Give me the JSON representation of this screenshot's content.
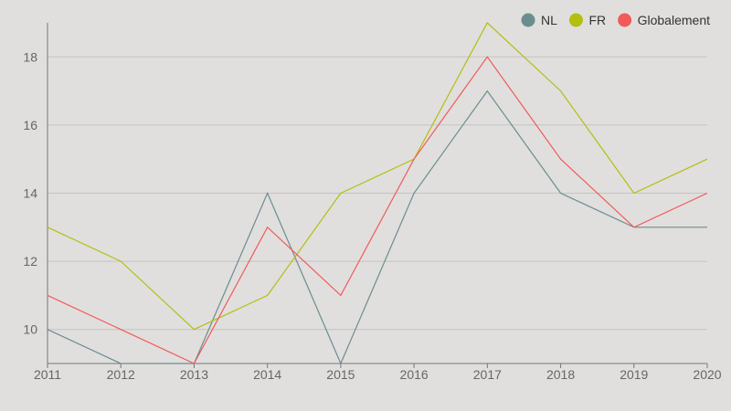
{
  "chart_data": {
    "type": "line",
    "title": "",
    "xlabel": "",
    "ylabel": "",
    "x": [
      "2011",
      "2012",
      "2013",
      "2014",
      "2015",
      "2016",
      "2017",
      "2018",
      "2019",
      "2020"
    ],
    "ylim": [
      9,
      19
    ],
    "yticks": [
      10,
      12,
      14,
      16,
      18
    ],
    "grid": true,
    "legend_position": "top-right",
    "series": [
      {
        "name": "NL",
        "color": "#6a8e8f",
        "values": [
          10,
          9,
          9,
          14,
          9,
          14,
          17,
          14,
          13,
          13
        ]
      },
      {
        "name": "FR",
        "color": "#b5be0f",
        "values": [
          13,
          12,
          10,
          11,
          14,
          15,
          19,
          17,
          14,
          15
        ]
      },
      {
        "name": "Globalement",
        "color": "#f25a5a",
        "values": [
          11,
          10,
          9,
          13,
          11,
          15,
          18,
          15,
          13,
          14
        ]
      }
    ]
  }
}
